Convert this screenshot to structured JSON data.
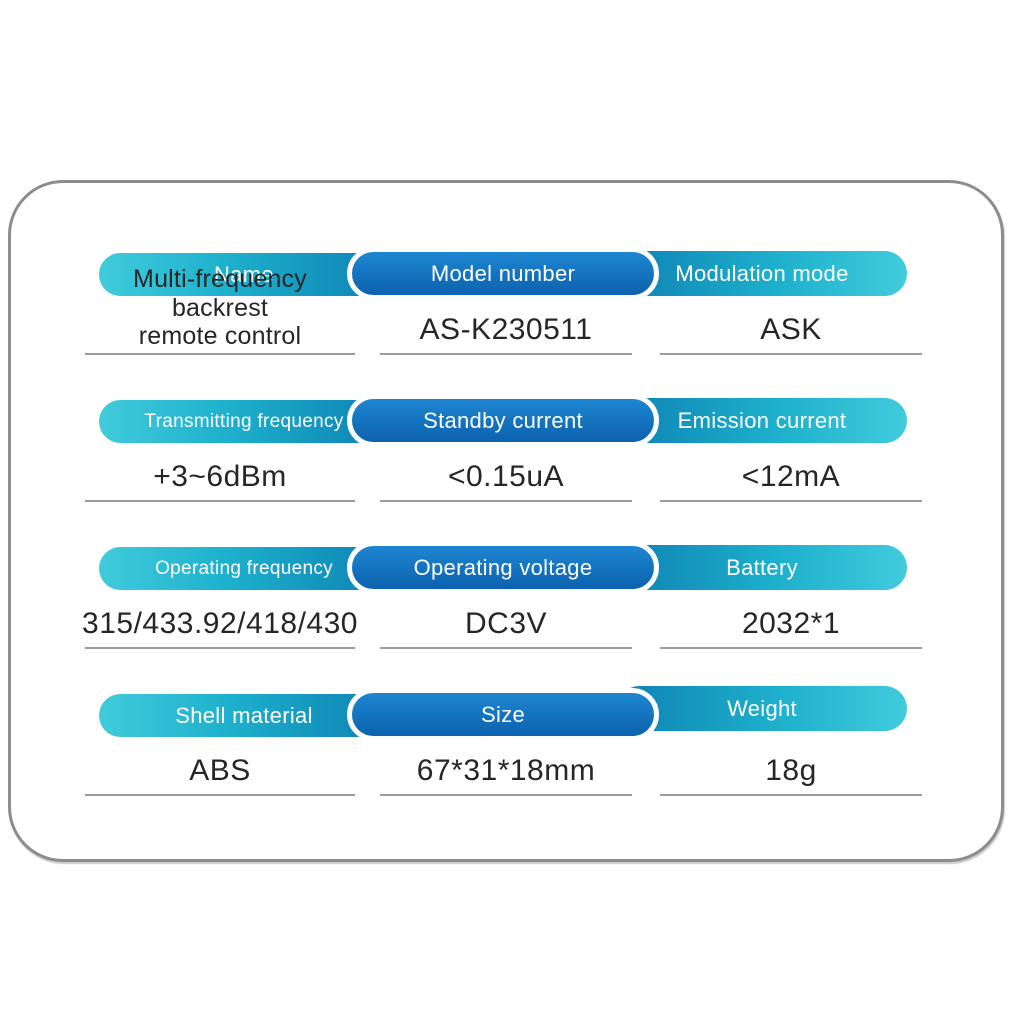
{
  "colors": {
    "teal_light": "#41cbdc",
    "teal_mid": "#1db0cc",
    "teal_dark": "#0e81b3",
    "blue_top": "#1e86d1",
    "blue_bottom": "#0c62ae",
    "header_text": "#ffffff",
    "value_text": "#262626",
    "underline": "#9c9c9c",
    "card_border": "#8d8d8d",
    "background": "#ffffff"
  },
  "rows": [
    {
      "left": {
        "header": "Name",
        "value": "Multi-frequency backrest\nremote control"
      },
      "center": {
        "header": "Model number",
        "value": "AS-K230511"
      },
      "right": {
        "header": "Modulation mode",
        "value": "ASK"
      }
    },
    {
      "left": {
        "header": "Transmitting frequency",
        "value": "+3~6dBm"
      },
      "center": {
        "header": "Standby current",
        "value": "<0.15uA"
      },
      "right": {
        "header": "Emission current",
        "value": "<12mA"
      }
    },
    {
      "left": {
        "header": "Operating frequency",
        "value": "315/433.92/418/430"
      },
      "center": {
        "header": "Operating voltage",
        "value": "DC3V"
      },
      "right": {
        "header": "Battery",
        "value": "2032*1"
      }
    },
    {
      "left": {
        "header": "Shell material",
        "value": "ABS"
      },
      "center": {
        "header": "Size",
        "value": "67*31*18mm"
      },
      "right": {
        "header": "Weight",
        "value": "18g"
      }
    }
  ]
}
